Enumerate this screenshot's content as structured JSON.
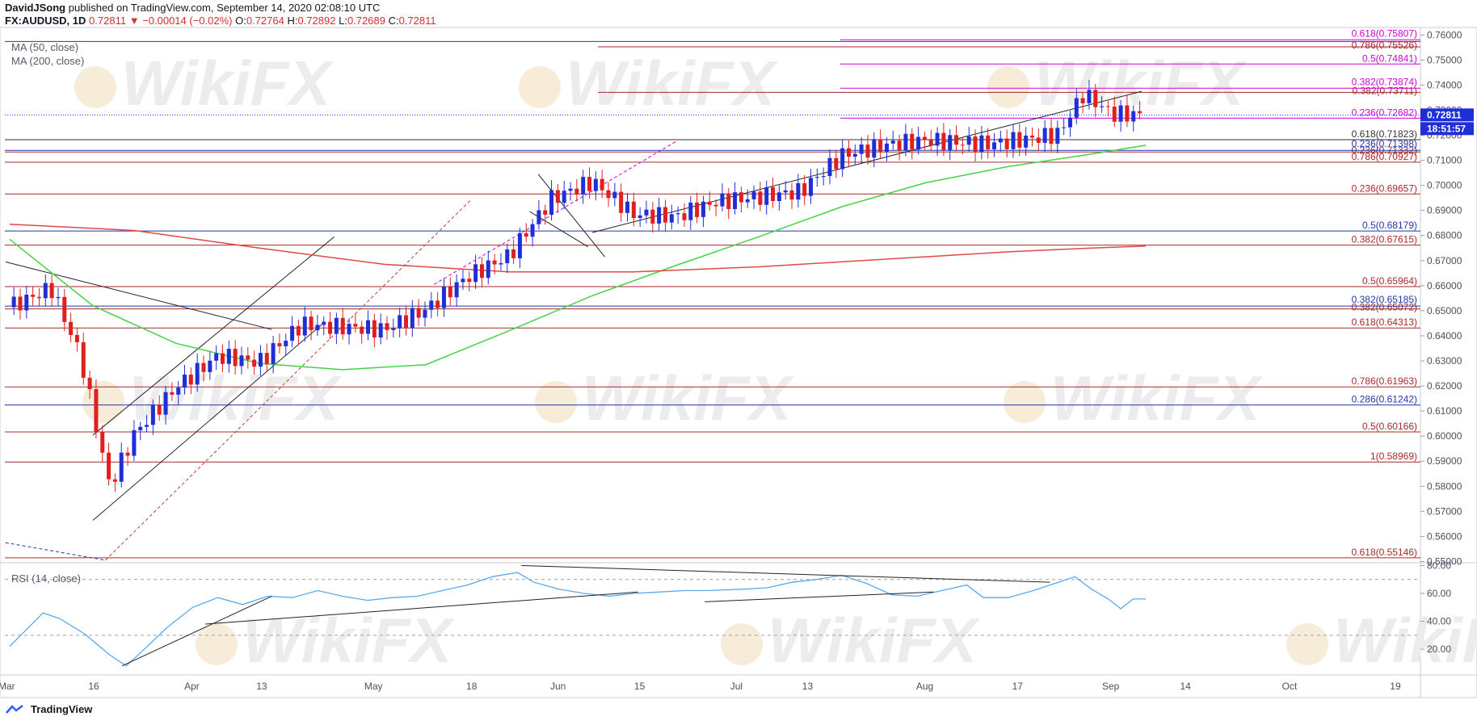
{
  "header": {
    "publisher": "DavidJSong",
    "published_line": "published on TradingView.com, September 14, 2020 02:08:10 UTC",
    "symbol": "FX:AUDUSD, 1D",
    "last": "0.72811",
    "change": "−0.00014 (−0.02%)",
    "open_label": "O:",
    "open": "0.72764",
    "high_label": "H:",
    "high": "0.72892",
    "low_label": "L:",
    "low": "0.72689",
    "close_label": "C:",
    "close": "0.72811"
  },
  "indicators": {
    "ma50": "MA (50, close)",
    "ma200": "MA (200, close)",
    "rsi": "RSI (14, close)"
  },
  "footer": {
    "brand": "TradingView"
  },
  "watermark": "WikiFX",
  "colors": {
    "up": "#1f2fd6",
    "down": "#e01f1f",
    "ma50": "#46d246",
    "ma200": "#e04848",
    "rsi": "#5aa8ee",
    "fib_red": "#a52a2a",
    "fib_blue": "#2238a8",
    "fib_magenta": "#d100d1"
  },
  "chart_data": [
    {
      "type": "candlestick",
      "title": "",
      "symbol": "FX:AUDUSD",
      "timeframe": "1D",
      "ylim": [
        0.5495,
        0.7617
      ],
      "yticks": [
        "0.76000",
        "0.75000",
        "0.74000",
        "0.73000",
        "0.72000",
        "0.71000",
        "0.70000",
        "0.69000",
        "0.68000",
        "0.67000",
        "0.66000",
        "0.65000",
        "0.64000",
        "0.63000",
        "0.62000",
        "0.61000",
        "0.60000",
        "0.59000",
        "0.58000",
        "0.57000",
        "0.56000",
        "0.55000"
      ],
      "xlim": [
        "2020-03-01",
        "2020-10-23"
      ],
      "xticks": [
        {
          "label": "Mar",
          "date": "2020-03-01"
        },
        {
          "label": "16",
          "date": "2020-03-16"
        },
        {
          "label": "Apr",
          "date": "2020-04-01"
        },
        {
          "label": "13",
          "date": "2020-04-13"
        },
        {
          "label": "May",
          "date": "2020-05-01"
        },
        {
          "label": "18",
          "date": "2020-05-18"
        },
        {
          "label": "Jun",
          "date": "2020-06-01"
        },
        {
          "label": "15",
          "date": "2020-06-15"
        },
        {
          "label": "Jul",
          "date": "2020-07-01"
        },
        {
          "label": "13",
          "date": "2020-07-13"
        },
        {
          "label": "Aug",
          "date": "2020-08-01"
        },
        {
          "label": "17",
          "date": "2020-08-17"
        },
        {
          "label": "Sep",
          "date": "2020-09-01"
        },
        {
          "label": "14",
          "date": "2020-09-14"
        },
        {
          "label": "Oct",
          "date": "2020-10-01"
        },
        {
          "label": "19",
          "date": "2020-10-19"
        }
      ],
      "price_label": "0.72811",
      "countdown_label": "18:51:57",
      "fib_levels": [
        {
          "label": "0.618(0.55146)",
          "value": 0.55146,
          "color": "red"
        },
        {
          "label": "1(0.58969)",
          "value": 0.58969,
          "color": "red"
        },
        {
          "label": "0.5(0.60166)",
          "value": 0.60166,
          "color": "red"
        },
        {
          "label": "0.286(0.61242)",
          "value": 0.61242,
          "color": "blue"
        },
        {
          "label": "0.786(0.61963)",
          "value": 0.61963,
          "color": "red"
        },
        {
          "label": "0.618(0.64313)",
          "value": 0.64313,
          "color": "red"
        },
        {
          "label": "0.382(0.65072)",
          "value": 0.65072,
          "color": "red"
        },
        {
          "label": "0.382(0.65185)",
          "value": 0.65185,
          "color": "blue"
        },
        {
          "label": "0.5(0.65964)",
          "value": 0.65964,
          "color": "red"
        },
        {
          "label": "0.382(0.67615)",
          "value": 0.67615,
          "color": "red"
        },
        {
          "label": "0.5(0.68179)",
          "value": 0.68179,
          "color": "blue"
        },
        {
          "label": "0.236(0.69657)",
          "value": 0.69657,
          "color": "red"
        },
        {
          "label": "0.786(0.70927)",
          "value": 0.70927,
          "color": "red"
        },
        {
          "label": "0.236(0.71332)",
          "value": 0.71332,
          "color": "red"
        },
        {
          "label": "0.236(0.71398)",
          "value": 0.71398,
          "color": "blue"
        },
        {
          "label": "0.618(0.71823)",
          "value": 0.71823,
          "color": "black"
        },
        {
          "label": "0.236(0.72682)",
          "value": 0.72682,
          "color": "magenta"
        },
        {
          "label": "0.382(0.73711)",
          "value": 0.73711,
          "color": "red"
        },
        {
          "label": "0.382(0.73874)",
          "value": 0.73874,
          "color": "magenta"
        },
        {
          "label": "0.5(0.74841)",
          "value": 0.74841,
          "color": "magenta"
        },
        {
          "label": "0.786(0.75526)",
          "value": 0.75526,
          "color": "red"
        },
        {
          "label": "0.618(0.75807)",
          "value": 0.75807,
          "color": "magenta"
        }
      ],
      "series": [
        {
          "name": "MA (50, close)",
          "color": "green",
          "points": [
            [
              0,
              0.6785
            ],
            [
              20,
              0.652
            ],
            [
              40,
              0.637
            ],
            [
              60,
              0.629
            ],
            [
              80,
              0.6265
            ],
            [
              100,
              0.6285
            ],
            [
              120,
              0.642
            ],
            [
              140,
              0.656
            ],
            [
              160,
              0.668
            ],
            [
              180,
              0.6795
            ],
            [
              200,
              0.6915
            ],
            [
              220,
              0.701
            ],
            [
              240,
              0.7075
            ],
            [
              260,
              0.7125
            ],
            [
              273,
              0.716
            ]
          ]
        },
        {
          "name": "MA (200, close)",
          "color": "red",
          "points": [
            [
              0,
              0.6845
            ],
            [
              30,
              0.682
            ],
            [
              60,
              0.675
            ],
            [
              90,
              0.6685
            ],
            [
              120,
              0.6655
            ],
            [
              150,
              0.6655
            ],
            [
              180,
              0.6675
            ],
            [
              200,
              0.6695
            ],
            [
              220,
              0.6715
            ],
            [
              240,
              0.6735
            ],
            [
              260,
              0.675
            ],
            [
              273,
              0.6758
            ]
          ]
        },
        {
          "name": "close",
          "points": [
            [
              0,
              0.6514
            ],
            [
              10,
              0.659
            ],
            [
              17,
              0.632
            ],
            [
              24,
              0.58
            ],
            [
              30,
              0.601
            ],
            [
              40,
              0.6195
            ],
            [
              50,
              0.632
            ],
            [
              60,
              0.6295
            ],
            [
              70,
              0.6445
            ],
            [
              80,
              0.6435
            ],
            [
              90,
              0.6425
            ],
            [
              100,
              0.6505
            ],
            [
              110,
              0.6635
            ],
            [
              120,
              0.672
            ],
            [
              130,
              0.6945
            ],
            [
              140,
              0.7015
            ],
            [
              150,
              0.6885
            ],
            [
              160,
              0.6875
            ],
            [
              170,
              0.6935
            ],
            [
              180,
              0.6955
            ],
            [
              190,
              0.6975
            ],
            [
              200,
              0.712
            ],
            [
              210,
              0.716
            ],
            [
              220,
              0.718
            ],
            [
              235,
              0.7165
            ],
            [
              245,
              0.7185
            ],
            [
              252,
              0.7205
            ],
            [
              258,
              0.7365
            ],
            [
              265,
              0.7285
            ],
            [
              273,
              0.7281
            ]
          ]
        }
      ]
    },
    {
      "type": "line",
      "title": "RSI (14, close)",
      "ylim": [
        5,
        82
      ],
      "yticks": [
        "80.00",
        "60.00",
        "40.00",
        "20.00"
      ],
      "levels": [
        70,
        30
      ],
      "series": [
        {
          "name": "RSI",
          "values_by_index": [
            [
              0,
              22
            ],
            [
              8,
              46
            ],
            [
              12,
              42
            ],
            [
              18,
              31
            ],
            [
              24,
              16
            ],
            [
              28,
              8
            ],
            [
              32,
              19
            ],
            [
              38,
              36
            ],
            [
              44,
              50
            ],
            [
              50,
              57
            ],
            [
              56,
              52
            ],
            [
              62,
              58
            ],
            [
              68,
              57
            ],
            [
              74,
              62
            ],
            [
              80,
              58
            ],
            [
              86,
              55
            ],
            [
              92,
              57
            ],
            [
              98,
              58
            ],
            [
              104,
              62
            ],
            [
              110,
              66
            ],
            [
              116,
              72
            ],
            [
              122,
              75
            ],
            [
              126,
              68
            ],
            [
              132,
              63
            ],
            [
              138,
              60
            ],
            [
              144,
              58
            ],
            [
              150,
              60
            ],
            [
              156,
              61
            ],
            [
              162,
              62
            ],
            [
              168,
              62
            ],
            [
              176,
              63
            ],
            [
              182,
              64
            ],
            [
              188,
              68
            ],
            [
              194,
              70
            ],
            [
              200,
              73
            ],
            [
              206,
              67
            ],
            [
              212,
              59
            ],
            [
              218,
              58
            ],
            [
              224,
              62
            ],
            [
              230,
              66
            ],
            [
              234,
              57
            ],
            [
              240,
              57
            ],
            [
              246,
              62
            ],
            [
              252,
              68
            ],
            [
              256,
              72
            ],
            [
              260,
              63
            ],
            [
              264,
              56
            ],
            [
              267,
              49
            ],
            [
              270,
              56
            ],
            [
              273,
              56
            ]
          ]
        }
      ]
    }
  ]
}
